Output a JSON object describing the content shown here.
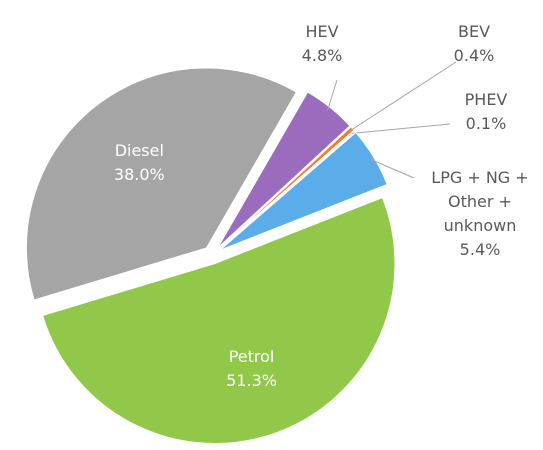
{
  "chart_data": {
    "type": "pie",
    "categories": [
      "HEV",
      "BEV",
      "PHEV",
      "LPG + NG + Other + unknown",
      "Petrol",
      "Diesel"
    ],
    "values": [
      4.8,
      0.4,
      0.1,
      5.4,
      51.3,
      38.0
    ],
    "value_labels": [
      "4.8%",
      "0.4%",
      "0.1%",
      "5.4%",
      "51.3%",
      "38.0%"
    ],
    "colors": [
      "#9b6cbd",
      "#ed7d31",
      "#e05a5a",
      "#5badea",
      "#92c84a",
      "#a5a5a5"
    ]
  }
}
